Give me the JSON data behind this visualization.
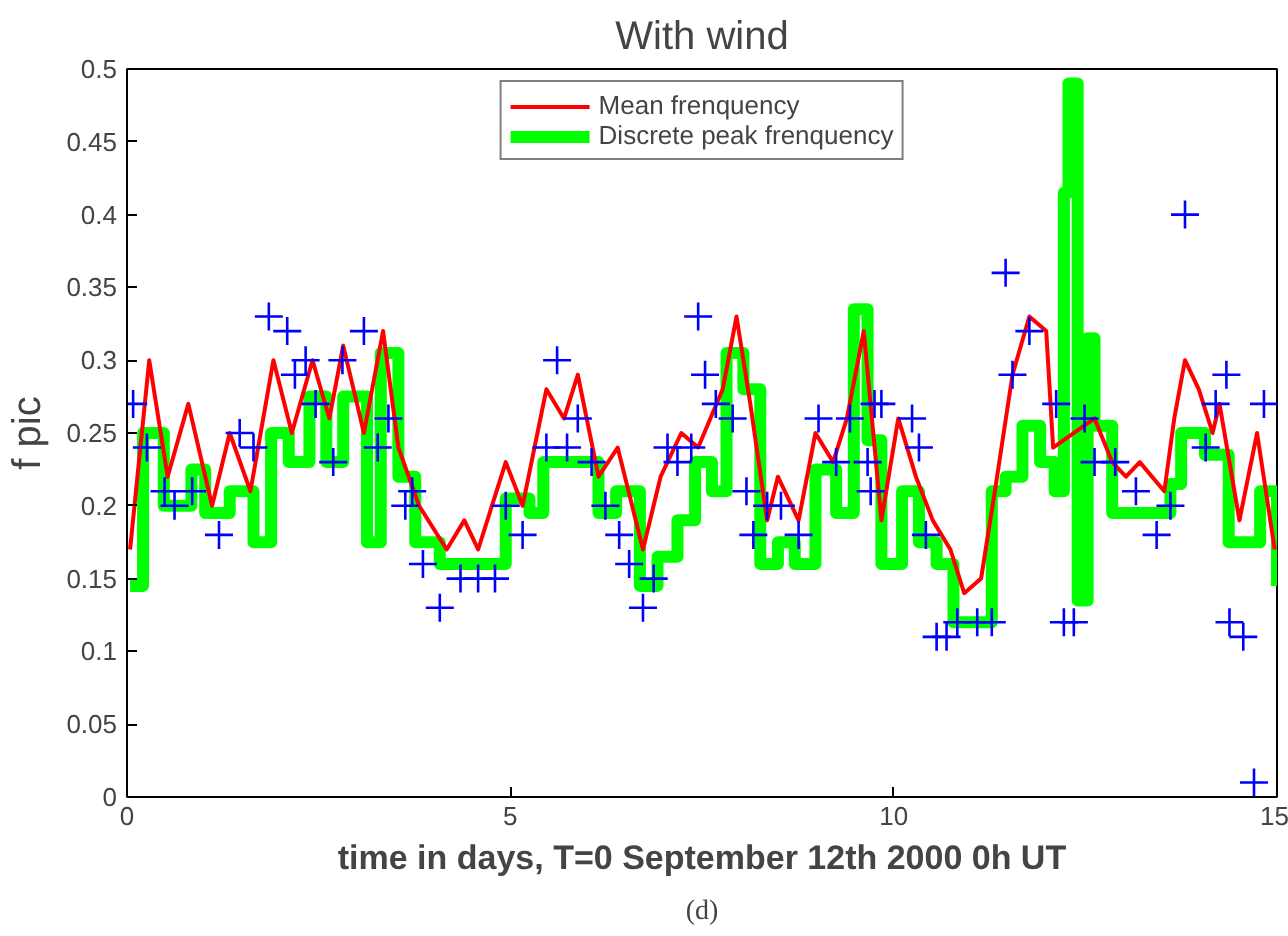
{
  "chart_data": {
    "type": "line",
    "title": "With wind",
    "xlabel": "time in days, T=0 September 12th 2000 0h UT",
    "ylabel": "f pic",
    "annotations": [
      "(d)"
    ],
    "xlim": [
      0,
      15
    ],
    "xticks": [
      0,
      5,
      10,
      15
    ],
    "ylim": [
      0,
      0.5
    ],
    "yticks": [
      0,
      0.05,
      0.1,
      0.15,
      0.2,
      0.25,
      0.3,
      0.35,
      0.4,
      0.45,
      0.5
    ],
    "grid": false,
    "legend": "top",
    "series": [
      {
        "name": "Mean frenquency",
        "color": "#ff0000",
        "x": [
          0.04,
          0.29,
          0.53,
          0.8,
          1.11,
          1.34,
          1.61,
          1.91,
          2.15,
          2.42,
          2.64,
          2.82,
          3.09,
          3.34,
          3.54,
          3.81,
          4.17,
          4.4,
          4.58,
          4.94,
          5.16,
          5.47,
          5.7,
          5.88,
          6.15,
          6.4,
          6.73,
          6.96,
          7.23,
          7.45,
          7.77,
          7.95,
          8.13,
          8.35,
          8.49,
          8.76,
          8.98,
          9.21,
          9.39,
          9.61,
          9.84,
          10.06,
          10.29,
          10.51,
          10.74,
          10.92,
          11.14,
          11.32,
          11.55,
          11.77,
          11.99,
          12.08,
          12.62,
          12.85,
          13.03,
          13.21,
          13.53,
          13.66,
          13.8,
          13.98,
          14.16,
          14.25,
          14.51,
          14.74,
          14.97
        ],
        "values": [
          0.17,
          0.3,
          0.22,
          0.27,
          0.2,
          0.25,
          0.21,
          0.3,
          0.25,
          0.3,
          0.26,
          0.31,
          0.25,
          0.32,
          0.24,
          0.2,
          0.17,
          0.19,
          0.17,
          0.23,
          0.2,
          0.28,
          0.26,
          0.29,
          0.22,
          0.24,
          0.17,
          0.22,
          0.25,
          0.24,
          0.28,
          0.33,
          0.27,
          0.19,
          0.22,
          0.19,
          0.25,
          0.23,
          0.26,
          0.32,
          0.19,
          0.26,
          0.22,
          0.19,
          0.17,
          0.14,
          0.15,
          0.21,
          0.29,
          0.33,
          0.32,
          0.24,
          0.26,
          0.23,
          0.22,
          0.23,
          0.21,
          0.26,
          0.3,
          0.28,
          0.25,
          0.27,
          0.19,
          0.25,
          0.17
        ]
      },
      {
        "name": "Discrete peak frenquency",
        "type": "step",
        "color": "#00ff00",
        "x": [
          0.04,
          0.21,
          0.48,
          0.84,
          1.02,
          1.34,
          1.65,
          1.88,
          2.11,
          2.38,
          2.6,
          2.82,
          3.13,
          3.31,
          3.54,
          3.76,
          4.08,
          4.71,
          4.94,
          5.25,
          5.43,
          5.88,
          6.15,
          6.38,
          6.69,
          6.92,
          7.18,
          7.41,
          7.63,
          7.82,
          8.04,
          8.26,
          8.49,
          8.71,
          8.98,
          9.25,
          9.48,
          9.66,
          9.84,
          10.11,
          10.33,
          10.56,
          10.78,
          11.14,
          11.28,
          11.46,
          11.68,
          11.91,
          12.1,
          12.22,
          12.28,
          12.4,
          12.53,
          12.62,
          12.85,
          13.34,
          13.61,
          13.75,
          14.06,
          14.37,
          14.65,
          14.78,
          15.0
        ],
        "values": [
          0.145,
          0.25,
          0.2,
          0.225,
          0.195,
          0.21,
          0.175,
          0.25,
          0.23,
          0.275,
          0.23,
          0.275,
          0.175,
          0.305,
          0.22,
          0.175,
          0.16,
          0.16,
          0.205,
          0.195,
          0.23,
          0.23,
          0.195,
          0.21,
          0.145,
          0.165,
          0.19,
          0.23,
          0.21,
          0.305,
          0.28,
          0.16,
          0.175,
          0.16,
          0.225,
          0.195,
          0.335,
          0.245,
          0.16,
          0.21,
          0.175,
          0.16,
          0.12,
          0.12,
          0.21,
          0.22,
          0.255,
          0.23,
          0.21,
          0.415,
          0.49,
          0.135,
          0.315,
          0.255,
          0.195,
          0.195,
          0.215,
          0.25,
          0.235,
          0.175,
          0.175,
          0.21,
          0.145
        ]
      },
      {
        "type": "scatter",
        "marker": "cross",
        "color": "#0000ff",
        "x": [
          0.08,
          0.26,
          0.49,
          0.62,
          0.85,
          1.2,
          1.47,
          1.65,
          1.85,
          2.09,
          2.19,
          2.33,
          2.46,
          2.69,
          2.81,
          3.09,
          3.27,
          3.41,
          3.63,
          3.72,
          3.86,
          4.08,
          4.35,
          4.58,
          4.8,
          4.94,
          5.16,
          5.47,
          5.61,
          5.74,
          5.88,
          6.06,
          6.24,
          6.42,
          6.55,
          6.73,
          6.87,
          7.05,
          7.18,
          7.36,
          7.45,
          7.54,
          7.68,
          7.9,
          8.08,
          8.17,
          8.35,
          8.53,
          8.76,
          9.02,
          9.25,
          9.43,
          9.66,
          9.75,
          9.7,
          9.84,
          10.24,
          10.33,
          10.42,
          10.56,
          10.69,
          10.83,
          11.09,
          11.28,
          11.46,
          11.55,
          11.77,
          12.12,
          12.22,
          12.35,
          12.49,
          12.62,
          12.89,
          13.16,
          13.43,
          13.61,
          13.8,
          14.07,
          14.2,
          14.34,
          14.38,
          14.56,
          14.7,
          14.83
        ],
        "values": [
          0.27,
          0.24,
          0.21,
          0.2,
          0.21,
          0.18,
          0.25,
          0.24,
          0.33,
          0.32,
          0.29,
          0.3,
          0.27,
          0.23,
          0.3,
          0.32,
          0.24,
          0.26,
          0.2,
          0.21,
          0.16,
          0.13,
          0.15,
          0.15,
          0.15,
          0.2,
          0.18,
          0.24,
          0.3,
          0.24,
          0.26,
          0.23,
          0.2,
          0.18,
          0.16,
          0.13,
          0.15,
          0.24,
          0.23,
          0.24,
          0.33,
          0.29,
          0.27,
          0.26,
          0.21,
          0.18,
          0.2,
          0.2,
          0.18,
          0.26,
          0.23,
          0.26,
          0.23,
          0.27,
          0.21,
          0.27,
          0.26,
          0.24,
          0.18,
          0.11,
          0.11,
          0.12,
          0.12,
          0.12,
          0.36,
          0.29,
          0.32,
          0.27,
          0.12,
          0.12,
          0.26,
          0.23,
          0.23,
          0.21,
          0.18,
          0.2,
          0.4,
          0.24,
          0.27,
          0.29,
          0.12,
          0.11,
          0.01,
          0.27
        ]
      }
    ]
  }
}
